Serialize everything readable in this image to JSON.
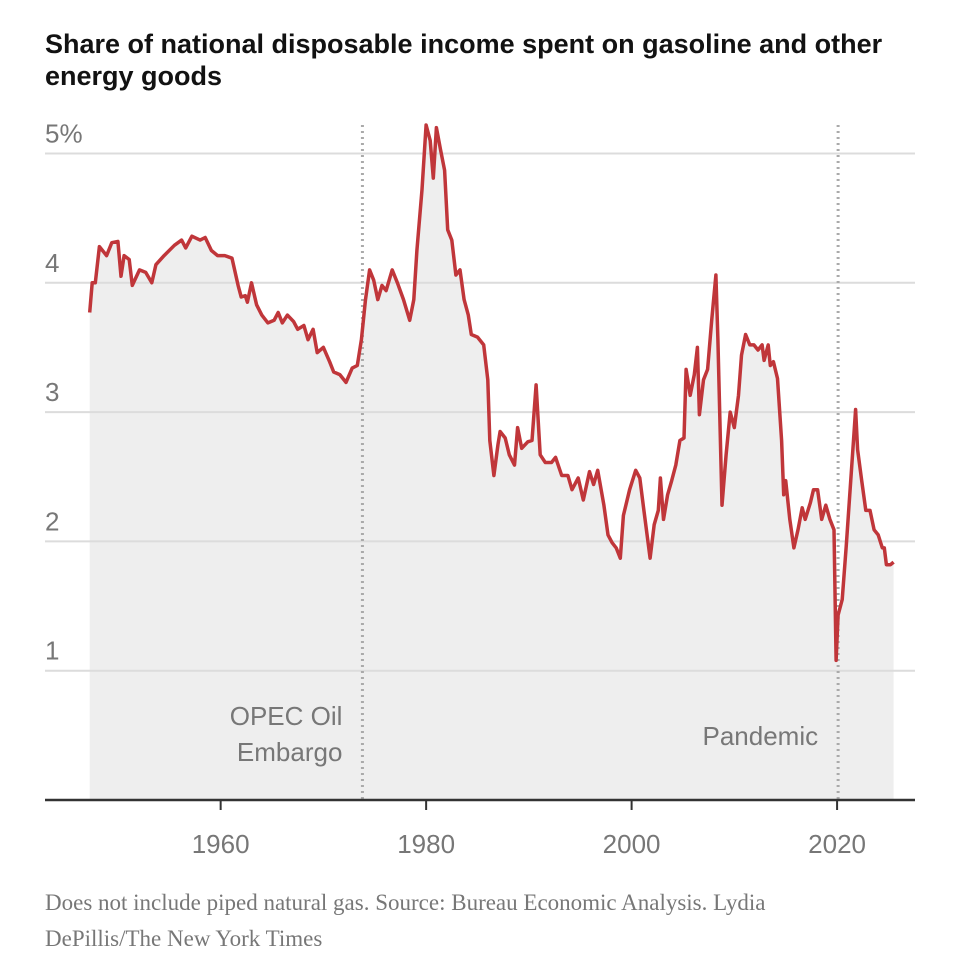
{
  "chart_data": {
    "type": "area-line",
    "title": "Share of national disposable income spent on gasoline and other energy goods",
    "footnote": "Does not include piped natural gas.  Source: Bureau Economic Analysis.  Lydia DePillis/The New York Times",
    "color": "#c0363a",
    "area_color": "#eeeeee",
    "grid": true,
    "xlim": [
      1943,
      2027
    ],
    "ylim": [
      0,
      5.3
    ],
    "xticks": [
      1960,
      1980,
      2000,
      2020
    ],
    "yticks": [
      1,
      2,
      3,
      4,
      {
        "value": 5,
        "label": "5%"
      }
    ],
    "annotations": [
      {
        "x": 1973.8,
        "lines": [
          "OPEC Oil",
          "Embargo"
        ]
      },
      {
        "x": 2020.1,
        "lines": [
          "Pandemic"
        ]
      }
    ],
    "x": [
      1947.25,
      1947.5,
      1947.8,
      1948.2,
      1948.9,
      1949.4,
      1950.0,
      1950.3,
      1950.6,
      1951.1,
      1951.4,
      1952.1,
      1952.7,
      1953.3,
      1953.7,
      1954.5,
      1955.5,
      1956.2,
      1956.6,
      1957.2,
      1958.0,
      1958.5,
      1959.1,
      1959.7,
      1960.4,
      1961.1,
      1961.7,
      1962.0,
      1962.4,
      1962.6,
      1963.0,
      1963.5,
      1964.0,
      1964.6,
      1965.2,
      1965.6,
      1966.0,
      1966.5,
      1967.1,
      1967.5,
      1968.1,
      1968.5,
      1969.0,
      1969.4,
      1970.0,
      1970.6,
      1971.0,
      1971.6,
      1972.2,
      1972.8,
      1973.3,
      1973.7,
      1974.1,
      1974.5,
      1974.9,
      1975.3,
      1975.7,
      1976.1,
      1976.7,
      1977.2,
      1977.8,
      1978.4,
      1978.8,
      1979.1,
      1979.6,
      1980.0,
      1980.4,
      1980.7,
      1981.0,
      1981.4,
      1981.8,
      1982.1,
      1982.5,
      1982.9,
      1983.3,
      1983.7,
      1984.1,
      1984.4,
      1985.0,
      1985.6,
      1986.0,
      1986.2,
      1986.6,
      1987.0,
      1987.2,
      1987.7,
      1988.1,
      1988.6,
      1988.9,
      1989.3,
      1989.9,
      1990.3,
      1990.7,
      1991.1,
      1991.6,
      1992.2,
      1992.6,
      1993.2,
      1993.8,
      1994.2,
      1994.8,
      1995.3,
      1995.9,
      1996.3,
      1996.7,
      1997.3,
      1997.7,
      1998.1,
      1998.5,
      1998.9,
      1999.2,
      1999.8,
      2000.4,
      2000.8,
      2001.2,
      2001.8,
      2002.2,
      2002.6,
      2002.8,
      2003.1,
      2003.5,
      2003.9,
      2004.3,
      2004.7,
      2005.1,
      2005.3,
      2005.7,
      2006.1,
      2006.4,
      2006.6,
      2007.0,
      2007.4,
      2007.8,
      2008.2,
      2008.4,
      2008.8,
      2009.2,
      2009.6,
      2010.0,
      2010.4,
      2010.7,
      2011.1,
      2011.5,
      2011.9,
      2012.3,
      2012.7,
      2012.9,
      2013.3,
      2013.5,
      2013.8,
      2014.2,
      2014.6,
      2014.8,
      2015.0,
      2015.4,
      2015.8,
      2016.2,
      2016.6,
      2016.9,
      2017.4,
      2017.7,
      2018.1,
      2018.5,
      2018.9,
      2019.3,
      2019.7,
      2019.9,
      2020.1,
      2020.5,
      2020.9,
      2021.2,
      2021.6,
      2021.8,
      2022.0,
      2022.4,
      2022.8,
      2023.2,
      2023.6,
      2024.0,
      2024.4,
      2024.6,
      2024.8,
      2025.2,
      2025.5
    ],
    "values": [
      3.77,
      4.0,
      4.0,
      4.28,
      4.21,
      4.31,
      4.32,
      4.05,
      4.21,
      4.18,
      3.98,
      4.1,
      4.08,
      4.0,
      4.14,
      4.21,
      4.29,
      4.33,
      4.27,
      4.36,
      4.33,
      4.35,
      4.25,
      4.21,
      4.21,
      4.19,
      3.98,
      3.89,
      3.9,
      3.85,
      4.0,
      3.83,
      3.75,
      3.69,
      3.71,
      3.77,
      3.69,
      3.75,
      3.7,
      3.64,
      3.67,
      3.56,
      3.64,
      3.46,
      3.5,
      3.39,
      3.31,
      3.29,
      3.23,
      3.34,
      3.36,
      3.56,
      3.87,
      4.1,
      4.02,
      3.87,
      3.98,
      3.94,
      4.1,
      4.0,
      3.87,
      3.71,
      3.87,
      4.25,
      4.72,
      5.22,
      5.1,
      4.81,
      5.2,
      5.03,
      4.87,
      4.41,
      4.33,
      4.06,
      4.1,
      3.87,
      3.75,
      3.6,
      3.58,
      3.52,
      3.25,
      2.78,
      2.51,
      2.75,
      2.85,
      2.8,
      2.67,
      2.59,
      2.88,
      2.72,
      2.77,
      2.78,
      3.21,
      2.67,
      2.61,
      2.61,
      2.65,
      2.51,
      2.51,
      2.4,
      2.49,
      2.32,
      2.54,
      2.44,
      2.55,
      2.28,
      2.05,
      1.99,
      1.95,
      1.87,
      2.2,
      2.4,
      2.55,
      2.49,
      2.24,
      1.87,
      2.13,
      2.24,
      2.49,
      2.17,
      2.36,
      2.47,
      2.59,
      2.78,
      2.8,
      3.33,
      3.13,
      3.29,
      3.5,
      2.98,
      3.25,
      3.33,
      3.71,
      4.06,
      3.56,
      2.28,
      2.67,
      3.0,
      2.88,
      3.13,
      3.44,
      3.6,
      3.52,
      3.52,
      3.48,
      3.52,
      3.4,
      3.52,
      3.36,
      3.39,
      3.26,
      2.78,
      2.36,
      2.47,
      2.17,
      1.95,
      2.09,
      2.26,
      2.17,
      2.3,
      2.4,
      2.4,
      2.17,
      2.28,
      2.17,
      2.09,
      1.08,
      1.43,
      1.55,
      1.97,
      2.32,
      2.78,
      3.02,
      2.71,
      2.47,
      2.24,
      2.24,
      2.09,
      2.05,
      1.95,
      1.95,
      1.82,
      1.82,
      1.84
    ]
  }
}
